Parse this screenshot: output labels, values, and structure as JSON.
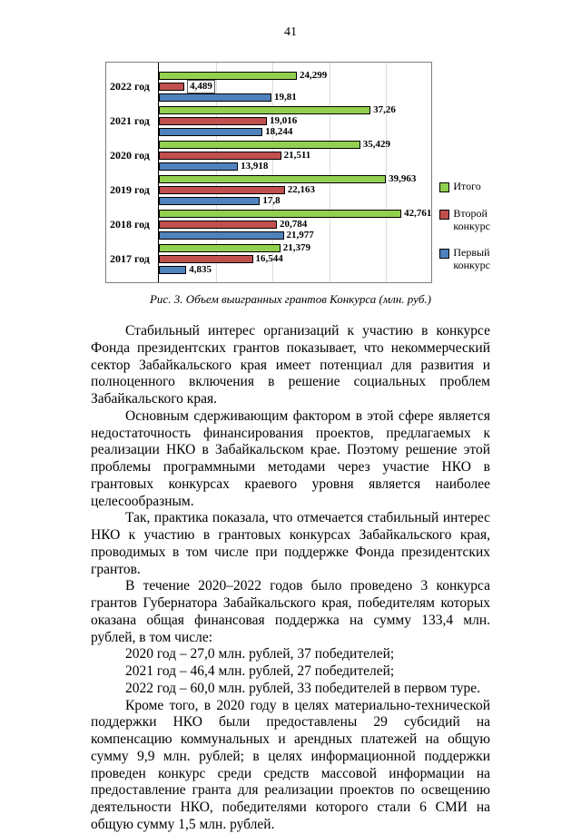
{
  "page": {
    "number": "41"
  },
  "chart_data": {
    "type": "bar",
    "orientation": "horizontal",
    "title": "",
    "xlabel": "",
    "ylabel": "",
    "caption": "Рис. 3. Объем выигранных грантов Конкурса (млн. руб.)",
    "categories": [
      "2022 год",
      "2021 год",
      "2020 год",
      "2019 год",
      "2018 год",
      "2017 год"
    ],
    "series": [
      {
        "key": "itogo",
        "name": "Итого",
        "color": "#92D050",
        "values": [
          24.299,
          37.26,
          35.429,
          39.963,
          42.761,
          21.379
        ],
        "labels": [
          "24,299",
          "37,26",
          "35,429",
          "39,963",
          "42,761",
          "21,379"
        ]
      },
      {
        "key": "vtoroy-konkurs",
        "name": "Второй конкурс",
        "color": "#C0504D",
        "values": [
          4.489,
          19.016,
          21.511,
          22.163,
          20.784,
          16.544
        ],
        "labels": [
          "4,489",
          "19,016",
          "21,511",
          "22,163",
          "20,784",
          "16,544"
        ]
      },
      {
        "key": "pervyi-konkurs",
        "name": "Первый конкурс",
        "color": "#4F81BD",
        "values": [
          19.81,
          18.244,
          13.918,
          17.8,
          21.977,
          4.835
        ],
        "labels": [
          "19,81",
          "18,244",
          "13,918",
          "17,8",
          "21,977",
          "4,835"
        ]
      }
    ],
    "xlim": [
      0,
      48
    ],
    "gridlines": [
      10,
      20,
      30,
      40
    ],
    "boxed_label": {
      "series": 1,
      "index": 0
    },
    "legend_position": "right",
    "grid": true
  },
  "paragraphs": [
    "Стабильный интерес организаций к участию в конкурсе Фонда президентских грантов показывает, что некоммерческий сектор Забайкальского края имеет потенциал для развития и полноценного включения в решение социальных проблем Забайкальского края.",
    "Основным сдерживающим фактором в этой сфере является недостаточность финансирования проектов, предлагаемых к реализации НКО в Забайкальском крае. Поэтому решение этой проблемы программными методами через участие НКО в грантовых конкурсах краевого уровня является наиболее целесообразным.",
    "Так, практика показала, что отмечается стабильный интерес НКО к участию в грантовых конкурсах Забайкальского края, проводимых в том числе при поддержке Фонда президентских грантов.",
    "В течение 2020–2022 годов было проведено 3 конкурса грантов Губернатора Забайкальского края, победителям которых оказана общая финансовая поддержка на сумму 133,4 млн. рублей, в том числе:",
    "2020 год – 27,0 млн. рублей, 37 победителей;",
    "2021 год – 46,4 млн. рублей, 27 победителей;",
    "2022 год – 60,0 млн. рублей, 33 победителей в первом туре.",
    "Кроме того, в 2020 году в целях материально-технической поддержки НКО были предоставлены 29 субсидий на компенсацию коммунальных и арендных платежей на общую сумму 9,9 млн. рублей; в целях информационной поддержки проведен конкурс среди средств массовой информации на предоставление гранта для реализации проектов по освещению деятельности НКО, победителями которого стали 6 СМИ на общую сумму 1,5 млн. рублей."
  ]
}
